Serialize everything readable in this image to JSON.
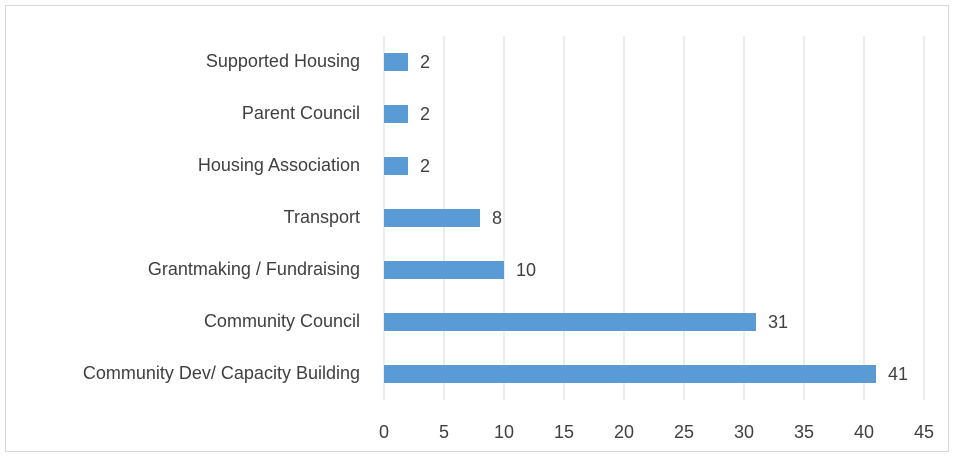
{
  "chart_data": {
    "type": "bar",
    "orientation": "horizontal",
    "categories": [
      "Supported Housing",
      "Parent Council",
      "Housing Association",
      "Transport",
      "Grantmaking / Fundraising",
      "Community Council",
      "Community Dev/ Capacity Building"
    ],
    "values": [
      2,
      2,
      2,
      8,
      10,
      31,
      41
    ],
    "color": "#5b9bd5",
    "xlim": [
      0,
      45
    ],
    "xticks": [
      0,
      5,
      10,
      15,
      20,
      25,
      30,
      35,
      40,
      45
    ],
    "grid": true
  }
}
